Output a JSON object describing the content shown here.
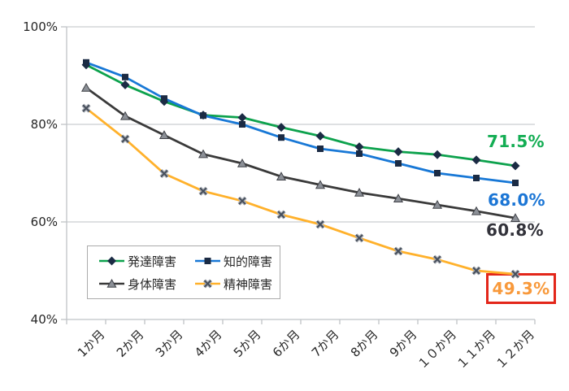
{
  "chart_data": {
    "type": "line",
    "title": "",
    "xlabel": "",
    "ylabel": "",
    "ylim": [
      40,
      100
    ],
    "grid": "horizontal",
    "legend_position": "inside-bottom-left",
    "y_tick_labels": [
      "100%",
      "80%",
      "60%",
      "40%"
    ],
    "categories": [
      "1か月",
      "2か月",
      "3か月",
      "4か月",
      "5か月",
      "6か月",
      "7か月",
      "8か月",
      "9か月",
      "１０か月",
      "１１か月",
      "１２か月"
    ],
    "series": [
      {
        "name": "発達障害",
        "marker": "diamond",
        "color": "#0da24d",
        "marker_color": "#1b2b44",
        "values": [
          92.2,
          88.1,
          84.7,
          81.9,
          81.4,
          79.4,
          77.6,
          75.4,
          74.4,
          73.8,
          72.7,
          71.5
        ],
        "end_label": "71.5%",
        "label_color": "#13ad53"
      },
      {
        "name": "知的障害",
        "marker": "square",
        "color": "#1878d6",
        "marker_color": "#1b2b44",
        "values": [
          92.7,
          89.7,
          85.3,
          81.8,
          80.0,
          77.3,
          75.0,
          74.0,
          72.0,
          70.0,
          69.0,
          68.0
        ],
        "end_label": "68.0%",
        "label_color": "#1c76d5"
      },
      {
        "name": "身体障害",
        "marker": "triangle",
        "color": "#3a3a3a",
        "marker_color": "#8c9097",
        "values": [
          87.5,
          81.7,
          77.8,
          73.9,
          72.0,
          69.3,
          67.6,
          66.0,
          64.8,
          63.5,
          62.2,
          60.8
        ],
        "end_label": "60.8%",
        "label_color": "#32323a"
      },
      {
        "name": "精神障害",
        "marker": "x",
        "color": "#ffb12b",
        "marker_color": "#464e5a",
        "values": [
          83.3,
          77.0,
          69.9,
          66.3,
          64.3,
          61.5,
          59.5,
          56.7,
          54.0,
          52.3,
          50.0,
          49.3
        ],
        "end_label": "49.3%",
        "label_color": "#f8993b",
        "highlight_box_color": "#e3261a"
      }
    ],
    "style": {
      "grid_color": "#c9cdd1",
      "axis_color": "#bfc3c7",
      "text_color": "#262626"
    }
  }
}
